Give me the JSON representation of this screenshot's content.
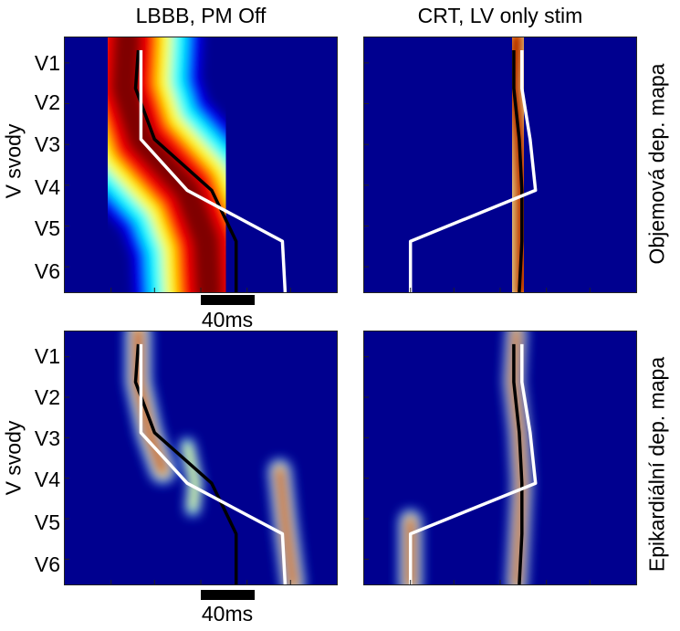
{
  "chart_data": {
    "type": "heatmap",
    "column_titles": [
      "LBBB, PM Off",
      "CRT, LV only stim"
    ],
    "row_titles": [
      "Objemová dep. mapa",
      "Epikardiální dep. mapa"
    ],
    "ylabel": "V svody",
    "leads": [
      "V1",
      "V2",
      "V3",
      "V4",
      "V5",
      "V6"
    ],
    "scale_bar_label": "40ms",
    "colormap": [
      "#00008f",
      "#0000ff",
      "#00ffff",
      "#ffff00",
      "#ff0000",
      "#800000"
    ],
    "line_colors": {
      "black": "#000000",
      "white": "#ffffff"
    },
    "panels": [
      {
        "column": 0,
        "row": 0,
        "black_line": [
          [
            0.27,
            0.05
          ],
          [
            0.26,
            0.2
          ],
          [
            0.33,
            0.4
          ],
          [
            0.54,
            0.6
          ],
          [
            0.63,
            0.8
          ],
          [
            0.63,
            1.0
          ]
        ],
        "white_line": [
          [
            0.28,
            0.05
          ],
          [
            0.28,
            0.4
          ],
          [
            0.45,
            0.6
          ],
          [
            0.8,
            0.8
          ],
          [
            0.81,
            1.0
          ]
        ],
        "bands": [
          {
            "pts": [
              [
                0.23,
                0.0
              ],
              [
                0.22,
                0.2
              ],
              [
                0.28,
                0.4
              ],
              [
                0.45,
                0.6
              ],
              [
                0.52,
                0.8
              ],
              [
                0.53,
                1.0
              ]
            ],
            "w": 0.55,
            "amp": 0.95
          }
        ]
      },
      {
        "column": 1,
        "row": 0,
        "black_line": [
          [
            0.55,
            0.05
          ],
          [
            0.55,
            0.2
          ],
          [
            0.57,
            0.4
          ],
          [
            0.58,
            0.6
          ],
          [
            0.58,
            0.8
          ],
          [
            0.57,
            1.0
          ]
        ],
        "white_line": [
          [
            0.58,
            0.05
          ],
          [
            0.58,
            0.2
          ],
          [
            0.61,
            0.4
          ],
          [
            0.63,
            0.6
          ],
          [
            0.17,
            0.8
          ],
          [
            0.17,
            1.0
          ]
        ],
        "bands": [
          {
            "pts": [
              [
                0.56,
                0.0
              ],
              [
                0.55,
                0.2
              ],
              [
                0.57,
                0.4
              ],
              [
                0.58,
                0.6
              ],
              [
                0.58,
                0.8
              ],
              [
                0.58,
                1.0
              ]
            ],
            "w": 0.18,
            "amp": 1.0
          }
        ]
      },
      {
        "column": 0,
        "row": 1,
        "black_line": [
          [
            0.27,
            0.05
          ],
          [
            0.26,
            0.2
          ],
          [
            0.33,
            0.4
          ],
          [
            0.54,
            0.6
          ],
          [
            0.63,
            0.8
          ],
          [
            0.63,
            1.0
          ]
        ],
        "white_line": [
          [
            0.28,
            0.05
          ],
          [
            0.28,
            0.4
          ],
          [
            0.45,
            0.6
          ],
          [
            0.8,
            0.8
          ],
          [
            0.81,
            1.0
          ]
        ],
        "bands": [
          {
            "pts": [
              [
                0.27,
                0.0
              ],
              [
                0.27,
                0.2
              ],
              [
                0.31,
                0.4
              ],
              [
                0.36,
                0.55
              ]
            ],
            "w": 0.1,
            "amp": 1.0
          },
          {
            "pts": [
              [
                0.45,
                0.45
              ],
              [
                0.48,
                0.6
              ],
              [
                0.47,
                0.7
              ]
            ],
            "w": 0.06,
            "amp": 0.7
          },
          {
            "pts": [
              [
                0.79,
                0.55
              ],
              [
                0.81,
                0.75
              ],
              [
                0.84,
                1.0
              ]
            ],
            "w": 0.09,
            "amp": 0.95
          }
        ]
      },
      {
        "column": 1,
        "row": 1,
        "black_line": [
          [
            0.55,
            0.05
          ],
          [
            0.55,
            0.2
          ],
          [
            0.57,
            0.4
          ],
          [
            0.58,
            0.6
          ],
          [
            0.58,
            0.8
          ],
          [
            0.57,
            1.0
          ]
        ],
        "white_line": [
          [
            0.58,
            0.05
          ],
          [
            0.58,
            0.2
          ],
          [
            0.61,
            0.4
          ],
          [
            0.63,
            0.6
          ],
          [
            0.17,
            0.8
          ],
          [
            0.17,
            1.0
          ]
        ],
        "bands": [
          {
            "pts": [
              [
                0.56,
                0.0
              ],
              [
                0.55,
                0.2
              ],
              [
                0.57,
                0.4
              ],
              [
                0.58,
                0.6
              ],
              [
                0.57,
                0.8
              ],
              [
                0.56,
                1.0
              ]
            ],
            "w": 0.08,
            "amp": 1.0
          },
          {
            "pts": [
              [
                0.17,
                0.75
              ],
              [
                0.17,
                1.0
              ]
            ],
            "w": 0.09,
            "amp": 0.95
          }
        ]
      }
    ]
  }
}
